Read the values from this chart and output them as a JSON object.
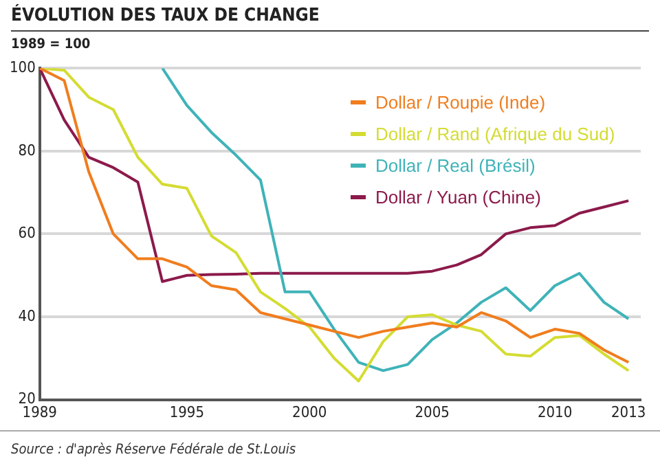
{
  "chart_data": {
    "type": "line",
    "title": "ÉVOLUTION DES TAUX DE CHANGE",
    "subtitle": "1989 = 100",
    "x": [
      1989,
      1990,
      1991,
      1992,
      1993,
      1994,
      1995,
      1996,
      1997,
      1998,
      1999,
      2000,
      2001,
      2002,
      2003,
      2004,
      2005,
      2006,
      2007,
      2008,
      2009,
      2010,
      2011,
      2012,
      2013
    ],
    "series": [
      {
        "name": "Dollar / Roupie (Inde)",
        "color": "#f07d1e",
        "values": [
          100,
          97,
          75,
          60,
          54,
          54,
          52,
          47.5,
          46.5,
          41,
          39.5,
          38,
          36.5,
          35,
          36.5,
          37.5,
          38.5,
          37.5,
          41,
          39,
          35,
          37,
          36,
          32,
          29
        ]
      },
      {
        "name": "Dollar / Rand (Afrique du Sud)",
        "color": "#d4dc32",
        "values": [
          100,
          99.5,
          93,
          90,
          78.5,
          72,
          71,
          59.5,
          55.5,
          46,
          42,
          37.5,
          30,
          24.5,
          34,
          40,
          40.5,
          38,
          36.5,
          31,
          30.5,
          35,
          35.5,
          31,
          27
        ]
      },
      {
        "name": "Dollar / Real (Brésil)",
        "color": "#3fb3b8",
        "values": [
          null,
          null,
          null,
          null,
          null,
          100,
          91,
          84.5,
          79,
          73,
          46,
          46,
          37,
          29,
          27,
          28.5,
          34.5,
          38.5,
          43.5,
          47,
          41.5,
          47.5,
          50.5,
          43.5,
          39.5
        ]
      },
      {
        "name": "Dollar / Yuan (Chine)",
        "color": "#8c1a4b",
        "values": [
          100,
          87.5,
          78.5,
          76,
          72.5,
          48.5,
          50,
          50.2,
          50.3,
          50.5,
          50.5,
          50.5,
          50.5,
          50.5,
          50.5,
          50.5,
          51,
          52.5,
          55,
          60,
          61.5,
          62,
          65,
          66.5,
          68
        ]
      }
    ],
    "xlim": [
      1989,
      2013.5
    ],
    "xticks": [
      1989,
      1995,
      2000,
      2005,
      2010,
      2013
    ],
    "ylim": [
      20,
      100
    ],
    "yticks": [
      20,
      40,
      60,
      80,
      100
    ],
    "grid": "y",
    "legend": "top right",
    "marker": "none",
    "line_style": "solid",
    "annotations": [
      "Source : d'après Réserve Fédérale de St.Louis"
    ]
  }
}
